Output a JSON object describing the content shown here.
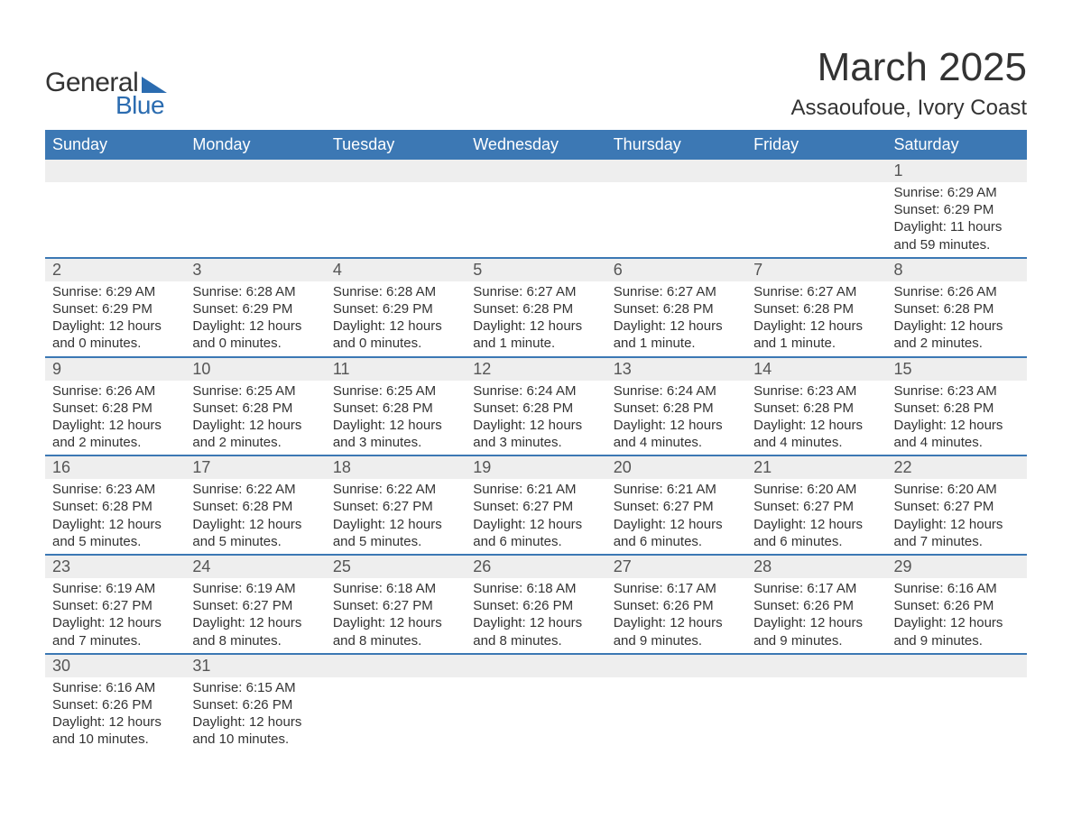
{
  "brand": {
    "line1": "General",
    "line2": "Blue",
    "accent_color": "#2b6cb0"
  },
  "header": {
    "title": "March 2025",
    "subtitle": "Assaoufoue, Ivory Coast"
  },
  "calendar": {
    "day_names": [
      "Sunday",
      "Monday",
      "Tuesday",
      "Wednesday",
      "Thursday",
      "Friday",
      "Saturday"
    ],
    "header_bg": "#3c78b4",
    "header_fg": "#ffffff",
    "daynum_bg": "#eeeeee",
    "row_border": "#3c78b4",
    "text_color": "#333333",
    "weeks": [
      [
        null,
        null,
        null,
        null,
        null,
        null,
        {
          "n": "1",
          "sunrise": "Sunrise: 6:29 AM",
          "sunset": "Sunset: 6:29 PM",
          "day1": "Daylight: 11 hours",
          "day2": "and 59 minutes."
        }
      ],
      [
        {
          "n": "2",
          "sunrise": "Sunrise: 6:29 AM",
          "sunset": "Sunset: 6:29 PM",
          "day1": "Daylight: 12 hours",
          "day2": "and 0 minutes."
        },
        {
          "n": "3",
          "sunrise": "Sunrise: 6:28 AM",
          "sunset": "Sunset: 6:29 PM",
          "day1": "Daylight: 12 hours",
          "day2": "and 0 minutes."
        },
        {
          "n": "4",
          "sunrise": "Sunrise: 6:28 AM",
          "sunset": "Sunset: 6:29 PM",
          "day1": "Daylight: 12 hours",
          "day2": "and 0 minutes."
        },
        {
          "n": "5",
          "sunrise": "Sunrise: 6:27 AM",
          "sunset": "Sunset: 6:28 PM",
          "day1": "Daylight: 12 hours",
          "day2": "and 1 minute."
        },
        {
          "n": "6",
          "sunrise": "Sunrise: 6:27 AM",
          "sunset": "Sunset: 6:28 PM",
          "day1": "Daylight: 12 hours",
          "day2": "and 1 minute."
        },
        {
          "n": "7",
          "sunrise": "Sunrise: 6:27 AM",
          "sunset": "Sunset: 6:28 PM",
          "day1": "Daylight: 12 hours",
          "day2": "and 1 minute."
        },
        {
          "n": "8",
          "sunrise": "Sunrise: 6:26 AM",
          "sunset": "Sunset: 6:28 PM",
          "day1": "Daylight: 12 hours",
          "day2": "and 2 minutes."
        }
      ],
      [
        {
          "n": "9",
          "sunrise": "Sunrise: 6:26 AM",
          "sunset": "Sunset: 6:28 PM",
          "day1": "Daylight: 12 hours",
          "day2": "and 2 minutes."
        },
        {
          "n": "10",
          "sunrise": "Sunrise: 6:25 AM",
          "sunset": "Sunset: 6:28 PM",
          "day1": "Daylight: 12 hours",
          "day2": "and 2 minutes."
        },
        {
          "n": "11",
          "sunrise": "Sunrise: 6:25 AM",
          "sunset": "Sunset: 6:28 PM",
          "day1": "Daylight: 12 hours",
          "day2": "and 3 minutes."
        },
        {
          "n": "12",
          "sunrise": "Sunrise: 6:24 AM",
          "sunset": "Sunset: 6:28 PM",
          "day1": "Daylight: 12 hours",
          "day2": "and 3 minutes."
        },
        {
          "n": "13",
          "sunrise": "Sunrise: 6:24 AM",
          "sunset": "Sunset: 6:28 PM",
          "day1": "Daylight: 12 hours",
          "day2": "and 4 minutes."
        },
        {
          "n": "14",
          "sunrise": "Sunrise: 6:23 AM",
          "sunset": "Sunset: 6:28 PM",
          "day1": "Daylight: 12 hours",
          "day2": "and 4 minutes."
        },
        {
          "n": "15",
          "sunrise": "Sunrise: 6:23 AM",
          "sunset": "Sunset: 6:28 PM",
          "day1": "Daylight: 12 hours",
          "day2": "and 4 minutes."
        }
      ],
      [
        {
          "n": "16",
          "sunrise": "Sunrise: 6:23 AM",
          "sunset": "Sunset: 6:28 PM",
          "day1": "Daylight: 12 hours",
          "day2": "and 5 minutes."
        },
        {
          "n": "17",
          "sunrise": "Sunrise: 6:22 AM",
          "sunset": "Sunset: 6:28 PM",
          "day1": "Daylight: 12 hours",
          "day2": "and 5 minutes."
        },
        {
          "n": "18",
          "sunrise": "Sunrise: 6:22 AM",
          "sunset": "Sunset: 6:27 PM",
          "day1": "Daylight: 12 hours",
          "day2": "and 5 minutes."
        },
        {
          "n": "19",
          "sunrise": "Sunrise: 6:21 AM",
          "sunset": "Sunset: 6:27 PM",
          "day1": "Daylight: 12 hours",
          "day2": "and 6 minutes."
        },
        {
          "n": "20",
          "sunrise": "Sunrise: 6:21 AM",
          "sunset": "Sunset: 6:27 PM",
          "day1": "Daylight: 12 hours",
          "day2": "and 6 minutes."
        },
        {
          "n": "21",
          "sunrise": "Sunrise: 6:20 AM",
          "sunset": "Sunset: 6:27 PM",
          "day1": "Daylight: 12 hours",
          "day2": "and 6 minutes."
        },
        {
          "n": "22",
          "sunrise": "Sunrise: 6:20 AM",
          "sunset": "Sunset: 6:27 PM",
          "day1": "Daylight: 12 hours",
          "day2": "and 7 minutes."
        }
      ],
      [
        {
          "n": "23",
          "sunrise": "Sunrise: 6:19 AM",
          "sunset": "Sunset: 6:27 PM",
          "day1": "Daylight: 12 hours",
          "day2": "and 7 minutes."
        },
        {
          "n": "24",
          "sunrise": "Sunrise: 6:19 AM",
          "sunset": "Sunset: 6:27 PM",
          "day1": "Daylight: 12 hours",
          "day2": "and 8 minutes."
        },
        {
          "n": "25",
          "sunrise": "Sunrise: 6:18 AM",
          "sunset": "Sunset: 6:27 PM",
          "day1": "Daylight: 12 hours",
          "day2": "and 8 minutes."
        },
        {
          "n": "26",
          "sunrise": "Sunrise: 6:18 AM",
          "sunset": "Sunset: 6:26 PM",
          "day1": "Daylight: 12 hours",
          "day2": "and 8 minutes."
        },
        {
          "n": "27",
          "sunrise": "Sunrise: 6:17 AM",
          "sunset": "Sunset: 6:26 PM",
          "day1": "Daylight: 12 hours",
          "day2": "and 9 minutes."
        },
        {
          "n": "28",
          "sunrise": "Sunrise: 6:17 AM",
          "sunset": "Sunset: 6:26 PM",
          "day1": "Daylight: 12 hours",
          "day2": "and 9 minutes."
        },
        {
          "n": "29",
          "sunrise": "Sunrise: 6:16 AM",
          "sunset": "Sunset: 6:26 PM",
          "day1": "Daylight: 12 hours",
          "day2": "and 9 minutes."
        }
      ],
      [
        {
          "n": "30",
          "sunrise": "Sunrise: 6:16 AM",
          "sunset": "Sunset: 6:26 PM",
          "day1": "Daylight: 12 hours",
          "day2": "and 10 minutes."
        },
        {
          "n": "31",
          "sunrise": "Sunrise: 6:15 AM",
          "sunset": "Sunset: 6:26 PM",
          "day1": "Daylight: 12 hours",
          "day2": "and 10 minutes."
        },
        null,
        null,
        null,
        null,
        null
      ]
    ]
  }
}
